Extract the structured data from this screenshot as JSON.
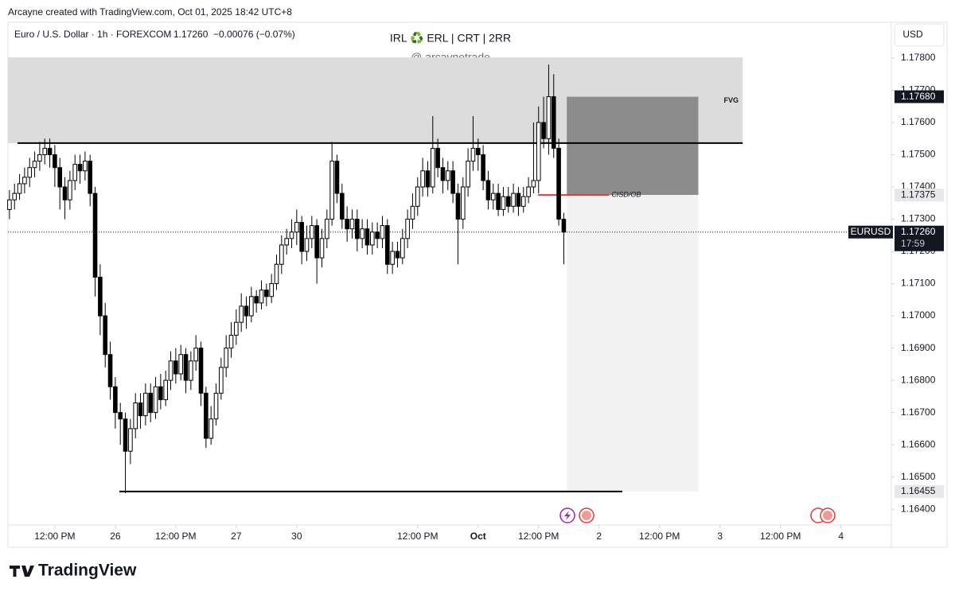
{
  "chart_data": {
    "type": "candlestick",
    "header": {
      "credit": "Arcayne created with TradingView.com, Oct 01, 2025 18:42 UTC+8",
      "symbol": "Euro / U.S. Dollar · 1h · FOREXCOM",
      "change": "−0.00076 (−0.07%)",
      "currency": "USD",
      "brand": "TradingView"
    },
    "title": "IRL ♻️ ERL | CRT | 2RR",
    "subtitle": "@ arcaynetrade",
    "ticker": "EURUSD",
    "countdown": "17:59",
    "last_price": {
      "value": 1.1726,
      "label": "1.17260"
    },
    "up_color": "#ffffff",
    "down_color": "#000000",
    "edge_color": "#000000",
    "open": [
      1.1733,
      1.1736,
      1.1738,
      1.1741,
      1.1743,
      1.1746,
      1.1748,
      1.175,
      1.1752,
      1.175,
      1.1746,
      1.174,
      1.1736,
      1.1742,
      1.1747,
      1.1745,
      1.1748,
      1.1738,
      1.1712,
      1.17,
      1.1688,
      1.1678,
      1.167,
      1.1668,
      1.1658,
      1.1665,
      1.1673,
      1.1669,
      1.1676,
      1.167,
      1.1678,
      1.1674,
      1.168,
      1.1686,
      1.1682,
      1.1688,
      1.168,
      1.1686,
      1.169,
      1.1676,
      1.1662,
      1.1668,
      1.1676,
      1.1684,
      1.169,
      1.1694,
      1.1698,
      1.1703,
      1.17,
      1.1706,
      1.1704,
      1.1708,
      1.1706,
      1.171,
      1.1716,
      1.1722,
      1.1724,
      1.1726,
      1.1729,
      1.172,
      1.1724,
      1.1728,
      1.1718,
      1.1724,
      1.173,
      1.1748,
      1.1738,
      1.173,
      1.1727,
      1.173,
      1.1724,
      1.1727,
      1.1722,
      1.1726,
      1.1724,
      1.1728,
      1.1716,
      1.172,
      1.1718,
      1.1724,
      1.173,
      1.1734,
      1.174,
      1.1745,
      1.174,
      1.1752,
      1.1746,
      1.1742,
      1.1745,
      1.1738,
      1.173,
      1.174,
      1.1748,
      1.1752,
      1.175,
      1.1742,
      1.1736,
      1.1738,
      1.1733,
      1.1737,
      1.1734,
      1.1738,
      1.1734,
      1.1737,
      1.174,
      1.1742,
      1.176,
      1.1755,
      1.1768,
      1.1752,
      1.173
    ],
    "high": [
      1.1739,
      1.1741,
      1.1744,
      1.1746,
      1.1749,
      1.1751,
      1.1754,
      1.1755,
      1.1755,
      1.1753,
      1.1749,
      1.1743,
      1.1745,
      1.175,
      1.175,
      1.1751,
      1.175,
      1.174,
      1.1716,
      1.1704,
      1.1692,
      1.1681,
      1.1673,
      1.167,
      1.1668,
      1.1676,
      1.1676,
      1.1679,
      1.1679,
      1.1681,
      1.1682,
      1.1683,
      1.1689,
      1.169,
      1.1691,
      1.169,
      1.1689,
      1.1694,
      1.1692,
      1.1678,
      1.1672,
      1.1679,
      1.1687,
      1.1694,
      1.1698,
      1.1702,
      1.1707,
      1.1706,
      1.1709,
      1.1708,
      1.1711,
      1.171,
      1.1713,
      1.1719,
      1.1725,
      1.1727,
      1.173,
      1.1733,
      1.1731,
      1.1728,
      1.1731,
      1.173,
      1.1727,
      1.1733,
      1.1754,
      1.175,
      1.1741,
      1.1734,
      1.1733,
      1.1733,
      1.173,
      1.173,
      1.1729,
      1.1729,
      1.1731,
      1.173,
      1.1723,
      1.1723,
      1.1727,
      1.1733,
      1.1738,
      1.1743,
      1.1749,
      1.1748,
      1.1762,
      1.1755,
      1.1749,
      1.1748,
      1.1748,
      1.1741,
      1.1743,
      1.1752,
      1.1762,
      1.1755,
      1.1753,
      1.1745,
      1.1741,
      1.1741,
      1.174,
      1.174,
      1.1741,
      1.174,
      1.174,
      1.1743,
      1.176,
      1.1765,
      1.1768,
      1.1778,
      1.1775,
      1.1755,
      1.1732
    ],
    "low": [
      1.173,
      1.1733,
      1.1736,
      1.1738,
      1.174,
      1.1743,
      1.1745,
      1.1747,
      1.1746,
      1.174,
      1.1733,
      1.173,
      1.1733,
      1.1739,
      1.1741,
      1.1742,
      1.1734,
      1.1706,
      1.1694,
      1.1684,
      1.1674,
      1.1665,
      1.166,
      1.1645,
      1.1654,
      1.1662,
      1.1665,
      1.1666,
      1.1667,
      1.1668,
      1.1671,
      1.1672,
      1.1677,
      1.1679,
      1.168,
      1.1676,
      1.1677,
      1.1683,
      1.1672,
      1.1659,
      1.166,
      1.1666,
      1.1674,
      1.1681,
      1.1687,
      1.1691,
      1.1695,
      1.1696,
      1.1698,
      1.1701,
      1.1702,
      1.1703,
      1.1704,
      1.1708,
      1.1713,
      1.1719,
      1.1721,
      1.1722,
      1.1716,
      1.1717,
      1.1721,
      1.171,
      1.1715,
      1.1721,
      1.1728,
      1.1735,
      1.1727,
      1.1723,
      1.1724,
      1.172,
      1.1721,
      1.1719,
      1.1719,
      1.1721,
      1.1721,
      1.1713,
      1.1713,
      1.1715,
      1.1716,
      1.1721,
      1.1727,
      1.1731,
      1.1737,
      1.1737,
      1.1738,
      1.1743,
      1.1738,
      1.1739,
      1.1735,
      1.1716,
      1.1727,
      1.1737,
      1.1745,
      1.1745,
      1.1739,
      1.1733,
      1.1733,
      1.1731,
      1.1731,
      1.1732,
      1.1732,
      1.1731,
      1.1732,
      1.1735,
      1.1738,
      1.1738,
      1.1752,
      1.175,
      1.1749,
      1.1728,
      1.1716
    ],
    "close": [
      1.1736,
      1.1738,
      1.1741,
      1.1743,
      1.1746,
      1.1748,
      1.175,
      1.1752,
      1.175,
      1.1746,
      1.174,
      1.1736,
      1.1742,
      1.1747,
      1.1745,
      1.1748,
      1.1738,
      1.1712,
      1.17,
      1.1688,
      1.1678,
      1.167,
      1.1668,
      1.1658,
      1.1665,
      1.1673,
      1.1669,
      1.1676,
      1.167,
      1.1678,
      1.1674,
      1.168,
      1.1686,
      1.1682,
      1.1688,
      1.168,
      1.1686,
      1.169,
      1.1676,
      1.1662,
      1.1668,
      1.1676,
      1.1684,
      1.169,
      1.1694,
      1.1698,
      1.1703,
      1.17,
      1.1706,
      1.1704,
      1.1708,
      1.1706,
      1.171,
      1.1716,
      1.1722,
      1.1724,
      1.1726,
      1.1729,
      1.172,
      1.1724,
      1.1728,
      1.1718,
      1.1724,
      1.173,
      1.1748,
      1.1738,
      1.173,
      1.1727,
      1.173,
      1.1724,
      1.1727,
      1.1722,
      1.1726,
      1.1724,
      1.1728,
      1.1716,
      1.172,
      1.1718,
      1.1724,
      1.173,
      1.1734,
      1.174,
      1.1745,
      1.174,
      1.1752,
      1.1746,
      1.1742,
      1.1745,
      1.1738,
      1.173,
      1.174,
      1.1748,
      1.1752,
      1.175,
      1.1742,
      1.1736,
      1.1738,
      1.1733,
      1.1737,
      1.1734,
      1.1738,
      1.1734,
      1.1737,
      1.174,
      1.1742,
      1.176,
      1.1755,
      1.1768,
      1.1752,
      1.173,
      1.1726
    ],
    "xlim": [
      -0.3,
      175
    ],
    "xticks": [
      {
        "value": 9,
        "label": "12:00 PM"
      },
      {
        "value": 21,
        "label": "26"
      },
      {
        "value": 33,
        "label": "12:00 PM"
      },
      {
        "value": 45,
        "label": "27"
      },
      {
        "value": 57,
        "label": "30"
      },
      {
        "value": 81,
        "label": "12:00 PM"
      },
      {
        "value": 93,
        "label": "Oct"
      },
      {
        "value": 105,
        "label": "12:00 PM"
      },
      {
        "value": 117,
        "label": "2"
      },
      {
        "value": 129,
        "label": "12:00 PM"
      },
      {
        "value": 141,
        "label": "3"
      },
      {
        "value": 153,
        "label": "12:00 PM"
      },
      {
        "value": 165,
        "label": "4"
      }
    ],
    "ylim": [
      1.16351,
      1.17911
    ],
    "yticks": [
      {
        "value": 1.164,
        "label": "1.16400"
      },
      {
        "value": 1.165,
        "label": "1.16500"
      },
      {
        "value": 1.166,
        "label": "1.16600"
      },
      {
        "value": 1.167,
        "label": "1.16700"
      },
      {
        "value": 1.168,
        "label": "1.16800"
      },
      {
        "value": 1.169,
        "label": "1.16900"
      },
      {
        "value": 1.17,
        "label": "1.17000"
      },
      {
        "value": 1.171,
        "label": "1.17100"
      },
      {
        "value": 1.172,
        "label": "1.17200"
      },
      {
        "value": 1.173,
        "label": "1.17300"
      },
      {
        "value": 1.174,
        "label": "1.17400"
      },
      {
        "value": 1.175,
        "label": "1.17500"
      },
      {
        "value": 1.176,
        "label": "1.17600"
      },
      {
        "value": 1.177,
        "label": "1.17700"
      },
      {
        "value": 1.178,
        "label": "1.17800"
      }
    ],
    "grid": false,
    "zones": [
      {
        "top": 1.17802,
        "bottom": 1.17536,
        "from": -0.3,
        "to": 145.5,
        "color": "#dcdcdc"
      },
      {
        "top": 1.1768,
        "bottom": 1.17375,
        "from": 110.6,
        "to": 136.7,
        "color": "#8c8c8c",
        "label": "FVG"
      },
      {
        "top": 1.17375,
        "bottom": 1.16455,
        "from": 110.6,
        "to": 136.7,
        "color": "#f2f2f2"
      }
    ],
    "lines": [
      {
        "value": 1.17536,
        "from": 1.6,
        "to": 145.5,
        "color": "#000000"
      },
      {
        "value": 1.16455,
        "from": 21.8,
        "to": 121.6,
        "color": "#000000"
      },
      {
        "value": 1.17375,
        "from": 104.9,
        "to": 119,
        "color": "#e03a3a",
        "label": "CISD/OB"
      }
    ],
    "price_markers": [
      {
        "value": 1.1768,
        "label": "1.17680",
        "style": "dark"
      },
      {
        "value": 1.17375,
        "label": "1.17375",
        "style": "light"
      },
      {
        "value": 1.16455,
        "label": "1.16455",
        "style": "light"
      }
    ]
  }
}
